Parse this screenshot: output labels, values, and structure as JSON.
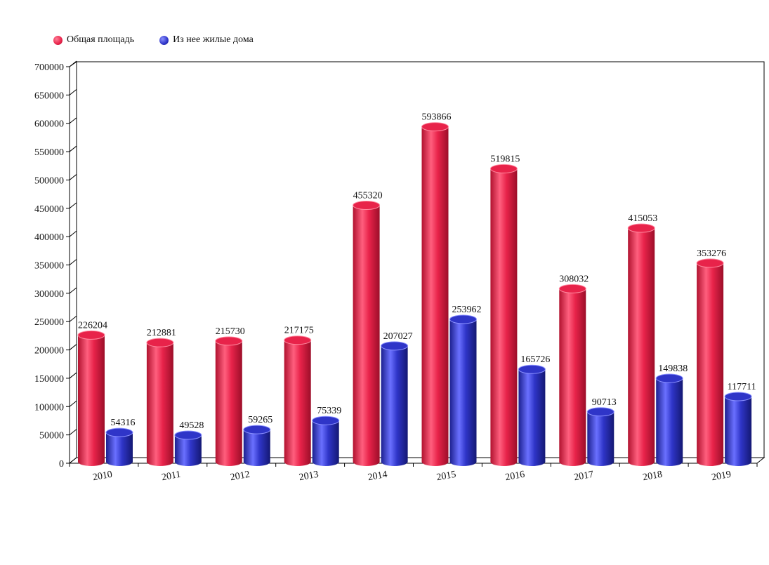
{
  "legend": {
    "series_0": "Общая площадь",
    "series_1": "Из нее жилые дома"
  },
  "colors": {
    "series_0": "#e8234a",
    "series_1": "#2f35c8"
  },
  "chart_data": {
    "type": "bar",
    "title": "",
    "xlabel": "",
    "ylabel": "",
    "ylim": [
      0,
      700000
    ],
    "yticks": [
      0,
      50000,
      100000,
      150000,
      200000,
      250000,
      300000,
      350000,
      400000,
      450000,
      500000,
      550000,
      600000,
      650000,
      700000
    ],
    "categories": [
      "2010",
      "2011",
      "2012",
      "2013",
      "2014",
      "2015",
      "2016",
      "2017",
      "2018",
      "2019"
    ],
    "series": [
      {
        "name": "Общая площадь",
        "values": [
          226204,
          212881,
          215730,
          217175,
          455320,
          593866,
          519815,
          308032,
          415053,
          353276
        ]
      },
      {
        "name": "Из нее жилые дома",
        "values": [
          54316,
          49528,
          59265,
          75339,
          207027,
          253962,
          165726,
          90713,
          149838,
          117711
        ]
      }
    ],
    "legend_position": "top-left",
    "grid": false
  }
}
